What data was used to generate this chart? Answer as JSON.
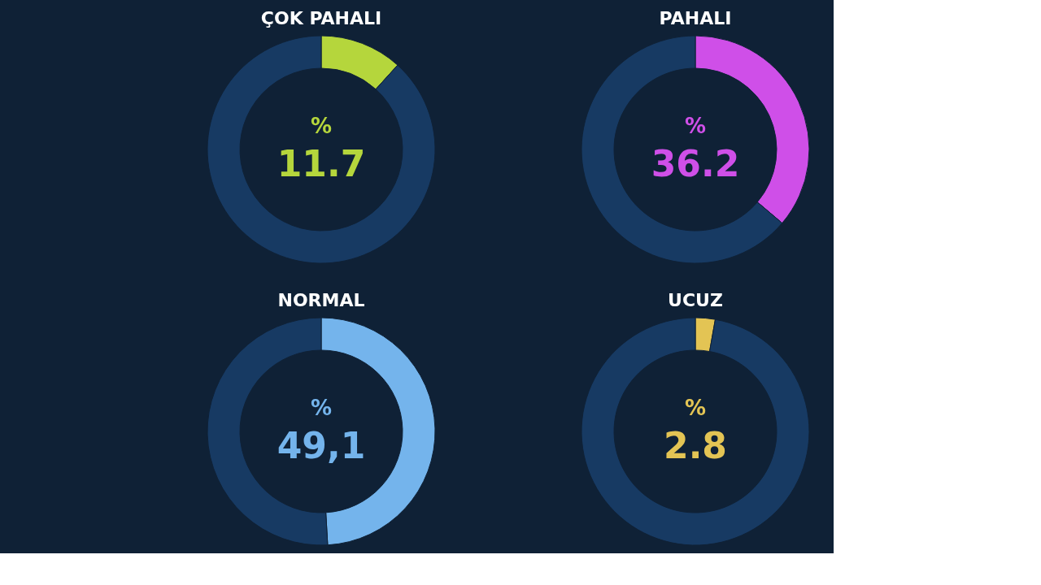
{
  "chart_data": [
    {
      "type": "donut",
      "title": "ÇOK PAHALI",
      "categories": [
        null,
        null
      ],
      "values": [
        11.7,
        88.3
      ],
      "colors": [
        "#b5d63c",
        "#173a63"
      ],
      "annotations": [
        "%",
        "11.7"
      ]
    },
    {
      "type": "donut",
      "title": "PAHALI",
      "categories": [
        null,
        null
      ],
      "values": [
        36.2,
        63.8
      ],
      "colors": [
        "#cf4fe8",
        "#173a63"
      ],
      "annotations": [
        "%",
        "36.2"
      ]
    },
    {
      "type": "donut",
      "title": "NORMAL",
      "categories": [
        null,
        null
      ],
      "values": [
        49.1,
        50.9
      ],
      "colors": [
        "#74b4ec",
        "#173a63"
      ],
      "annotations": [
        "%",
        "49,1"
      ]
    },
    {
      "type": "donut",
      "title": "UCUZ",
      "categories": [
        null,
        null
      ],
      "values": [
        2.8,
        97.2
      ],
      "colors": [
        "#e3c454",
        "#173a63"
      ],
      "annotations": [
        "%",
        "2.8"
      ]
    }
  ]
}
